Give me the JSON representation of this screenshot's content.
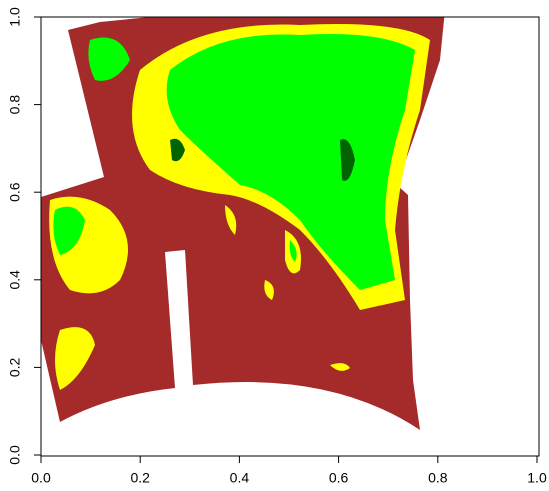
{
  "chart_data": {
    "type": "image",
    "xlim": [
      0,
      1
    ],
    "ylim": [
      0,
      1
    ],
    "xticks": [
      {
        "value": 0,
        "label": "0.0"
      },
      0.2,
      0.4,
      0.6,
      0.8,
      {
        "value": 1,
        "label": "1.0"
      }
    ],
    "yticks": [
      {
        "value": 0,
        "label": "0.0"
      },
      0.2,
      0.4,
      0.6,
      0.8,
      {
        "value": 1,
        "label": "1.0"
      }
    ],
    "colors": [
      "#a52a2a",
      "#ffff00",
      "#00ff00",
      "#006400"
    ]
  }
}
